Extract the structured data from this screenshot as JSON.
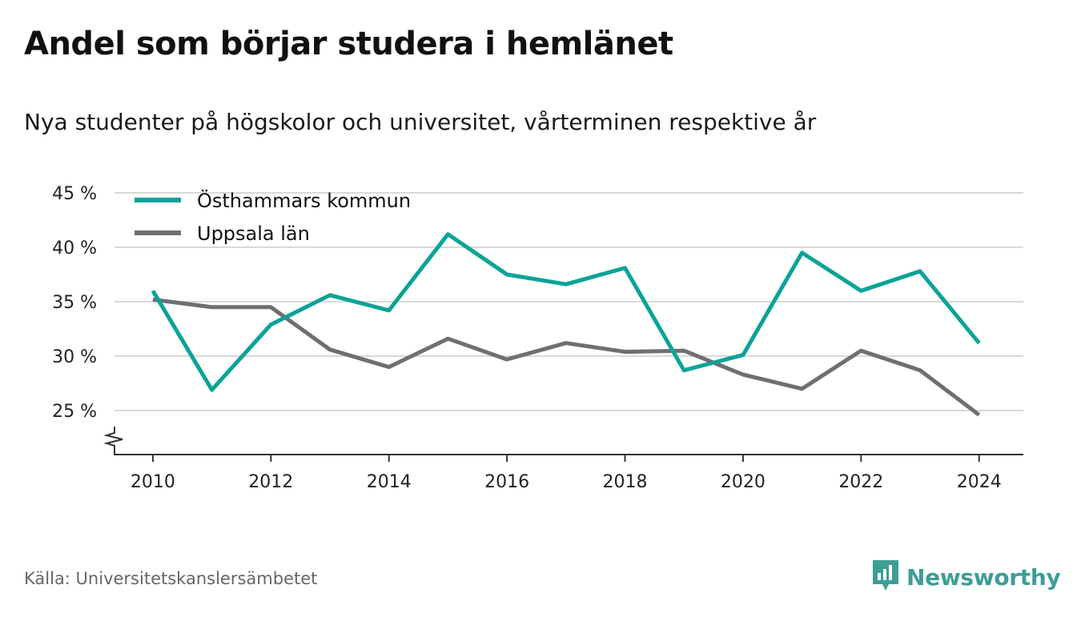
{
  "title": "Andel som börjar studera i hemlänet",
  "subtitle": "Nya studenter på högskolor och universitet, vårterminen respektive år",
  "source": "Källa: Universitetskanslersämbetet",
  "brand": {
    "name": "Newsworthy",
    "icon": "newsworthy-logo-icon",
    "color": "#3d9e96"
  },
  "chart_data": {
    "type": "line",
    "x": [
      2010,
      2011,
      2012,
      2013,
      2014,
      2015,
      2016,
      2017,
      2018,
      2019,
      2020,
      2021,
      2022,
      2023,
      2024
    ],
    "series": [
      {
        "name": "Östhammars kommun",
        "color": "#0aa398",
        "values": [
          36.0,
          26.9,
          32.9,
          35.6,
          34.2,
          41.2,
          37.5,
          36.6,
          38.1,
          28.7,
          30.1,
          39.5,
          36.0,
          37.8,
          31.2
        ]
      },
      {
        "name": "Uppsala län",
        "color": "#6f6e73",
        "values": [
          35.2,
          34.5,
          34.5,
          30.6,
          29.0,
          31.6,
          29.7,
          31.2,
          30.4,
          30.5,
          28.3,
          27.0,
          30.5,
          28.7,
          24.6
        ]
      }
    ],
    "xticks": [
      "2010",
      "2012",
      "2014",
      "2016",
      "2018",
      "2020",
      "2022",
      "2024"
    ],
    "yticks": [
      "25 %",
      "30 %",
      "35 %",
      "40 %",
      "45 %"
    ],
    "ylim": [
      25,
      45
    ],
    "xlim": [
      2009.35,
      2024.75
    ],
    "y_axis_break": true,
    "grid": "horizontal",
    "legend_position": "top-left"
  }
}
